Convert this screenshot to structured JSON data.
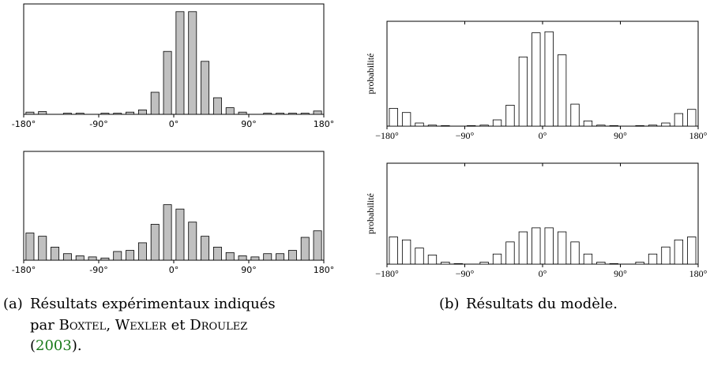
{
  "chart_data": [
    {
      "type": "histogram",
      "color": "#c0c0c0",
      "bins": [
        -180,
        -165,
        -150,
        -135,
        -120,
        -105,
        -90,
        -75,
        -60,
        -45,
        -30,
        -15,
        0,
        15,
        30,
        45,
        60,
        75,
        90,
        105,
        120,
        135,
        150,
        165,
        180
      ],
      "values": [
        2,
        2.5,
        0,
        1,
        1,
        0,
        1,
        1,
        2,
        4,
        20,
        57,
        93,
        93,
        48,
        15,
        6,
        2,
        0,
        1,
        1,
        1,
        1,
        3
      ],
      "xlim": [
        -180,
        180
      ],
      "ylim": [
        0,
        100
      ],
      "xticks": [
        {
          "value": -180,
          "label": "-180°"
        },
        {
          "value": -90,
          "label": "-90°"
        },
        {
          "value": 0,
          "label": "0°"
        },
        {
          "value": 90,
          "label": "90°"
        },
        {
          "value": 180,
          "label": "180°"
        }
      ]
    },
    {
      "type": "histogram",
      "color": "#c0c0c0",
      "bins": [
        -180,
        -165,
        -150,
        -135,
        -120,
        -105,
        -90,
        -75,
        -60,
        -45,
        -30,
        -15,
        0,
        15,
        30,
        45,
        60,
        75,
        90,
        105,
        120,
        135,
        150,
        165,
        180
      ],
      "values": [
        25,
        22,
        12,
        6,
        4,
        3,
        2,
        8,
        9,
        16,
        33,
        51,
        47,
        35,
        22,
        12,
        7,
        4,
        3,
        6,
        6,
        9,
        21,
        27
      ],
      "xlim": [
        -180,
        180
      ],
      "ylim": [
        0,
        100
      ],
      "xticks": [
        {
          "value": -180,
          "label": "-180°"
        },
        {
          "value": -90,
          "label": "-90°"
        },
        {
          "value": 0,
          "label": "0°"
        },
        {
          "value": 90,
          "label": "90°"
        },
        {
          "value": 180,
          "label": "180°"
        }
      ]
    },
    {
      "type": "histogram",
      "color": "#ffffff",
      "ylabel": "probabilité",
      "bins": [
        -180,
        -165,
        -150,
        -135,
        -120,
        -105,
        -90,
        -75,
        -60,
        -45,
        -30,
        -15,
        0,
        15,
        30,
        45,
        60,
        75,
        90,
        105,
        120,
        135,
        150,
        165,
        180
      ],
      "values": [
        17,
        13,
        3,
        1,
        0.5,
        0,
        0.5,
        1,
        6,
        20,
        66,
        89,
        90,
        68,
        21,
        5,
        1,
        0.5,
        0,
        0.5,
        1,
        3,
        12,
        16
      ],
      "xlim": [
        -180,
        180
      ],
      "ylim": [
        0,
        100
      ],
      "xticks": [
        {
          "value": -180,
          "label": "−180°"
        },
        {
          "value": -90,
          "label": "−90°"
        },
        {
          "value": 0,
          "label": "0°"
        },
        {
          "value": 90,
          "label": "90°"
        },
        {
          "value": 180,
          "label": "180°"
        }
      ]
    },
    {
      "type": "histogram",
      "color": "#ffffff",
      "ylabel": "probabilité",
      "bins": [
        -180,
        -165,
        -150,
        -135,
        -120,
        -105,
        -90,
        -75,
        -60,
        -45,
        -30,
        -15,
        0,
        15,
        30,
        45,
        60,
        75,
        90,
        105,
        120,
        135,
        150,
        165,
        180
      ],
      "values": [
        27,
        24,
        16,
        9,
        2,
        0.5,
        0,
        2,
        10,
        22,
        32,
        36,
        36,
        32,
        22,
        10,
        2,
        0.5,
        0,
        2,
        10,
        17,
        24,
        27
      ],
      "xlim": [
        -180,
        180
      ],
      "ylim": [
        0,
        100
      ],
      "xticks": [
        {
          "value": -180,
          "label": "−180°"
        },
        {
          "value": -90,
          "label": "−90°"
        },
        {
          "value": 0,
          "label": "0°"
        },
        {
          "value": 90,
          "label": "90°"
        },
        {
          "value": 180,
          "label": "180°"
        }
      ]
    }
  ],
  "captions": {
    "a": {
      "label": "(a)",
      "line1": "Résultats expérimentaux indiqués",
      "line2": [
        "par ",
        "Boxtel",
        ", ",
        "Wexler",
        " et ",
        "Droulez"
      ],
      "line3": [
        "(",
        "2003",
        ")."
      ]
    },
    "b": {
      "label": "(b)",
      "text": "Résultats du modèle."
    }
  }
}
